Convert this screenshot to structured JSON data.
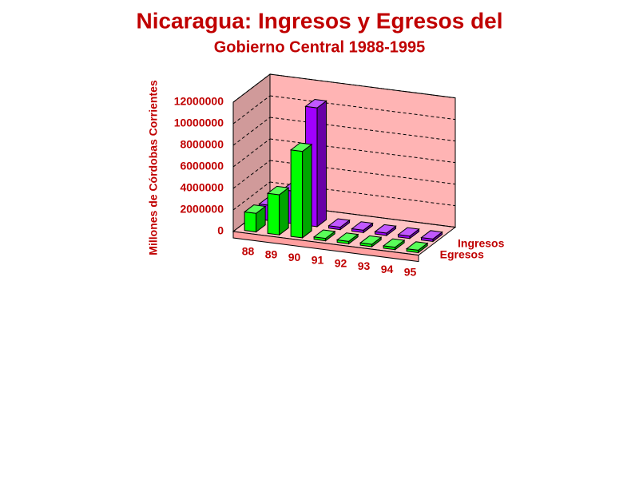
{
  "chart_data": {
    "type": "bar3d",
    "title": "Nicaragua: Ingresos y Egresos del",
    "subtitle": "Gobierno Central 1988-1995",
    "y_label": "Millones de Córdobas Corrientes",
    "categories": [
      "88",
      "89",
      "90",
      "91",
      "92",
      "93",
      "94",
      "95"
    ],
    "series": [
      {
        "name": "Ingresos",
        "color": "#a000ff",
        "values": [
          1200000,
          2800000,
          10800000,
          0,
          0,
          0,
          0,
          0
        ]
      },
      {
        "name": "Egresos",
        "color": "#00ff00",
        "values": [
          1500000,
          3500000,
          7800000,
          0,
          0,
          0,
          0,
          0
        ]
      }
    ],
    "ylim": [
      0,
      12000000
    ],
    "yticks": [
      0,
      2000000,
      4000000,
      6000000,
      8000000,
      10000000,
      12000000
    ],
    "grid": true
  }
}
